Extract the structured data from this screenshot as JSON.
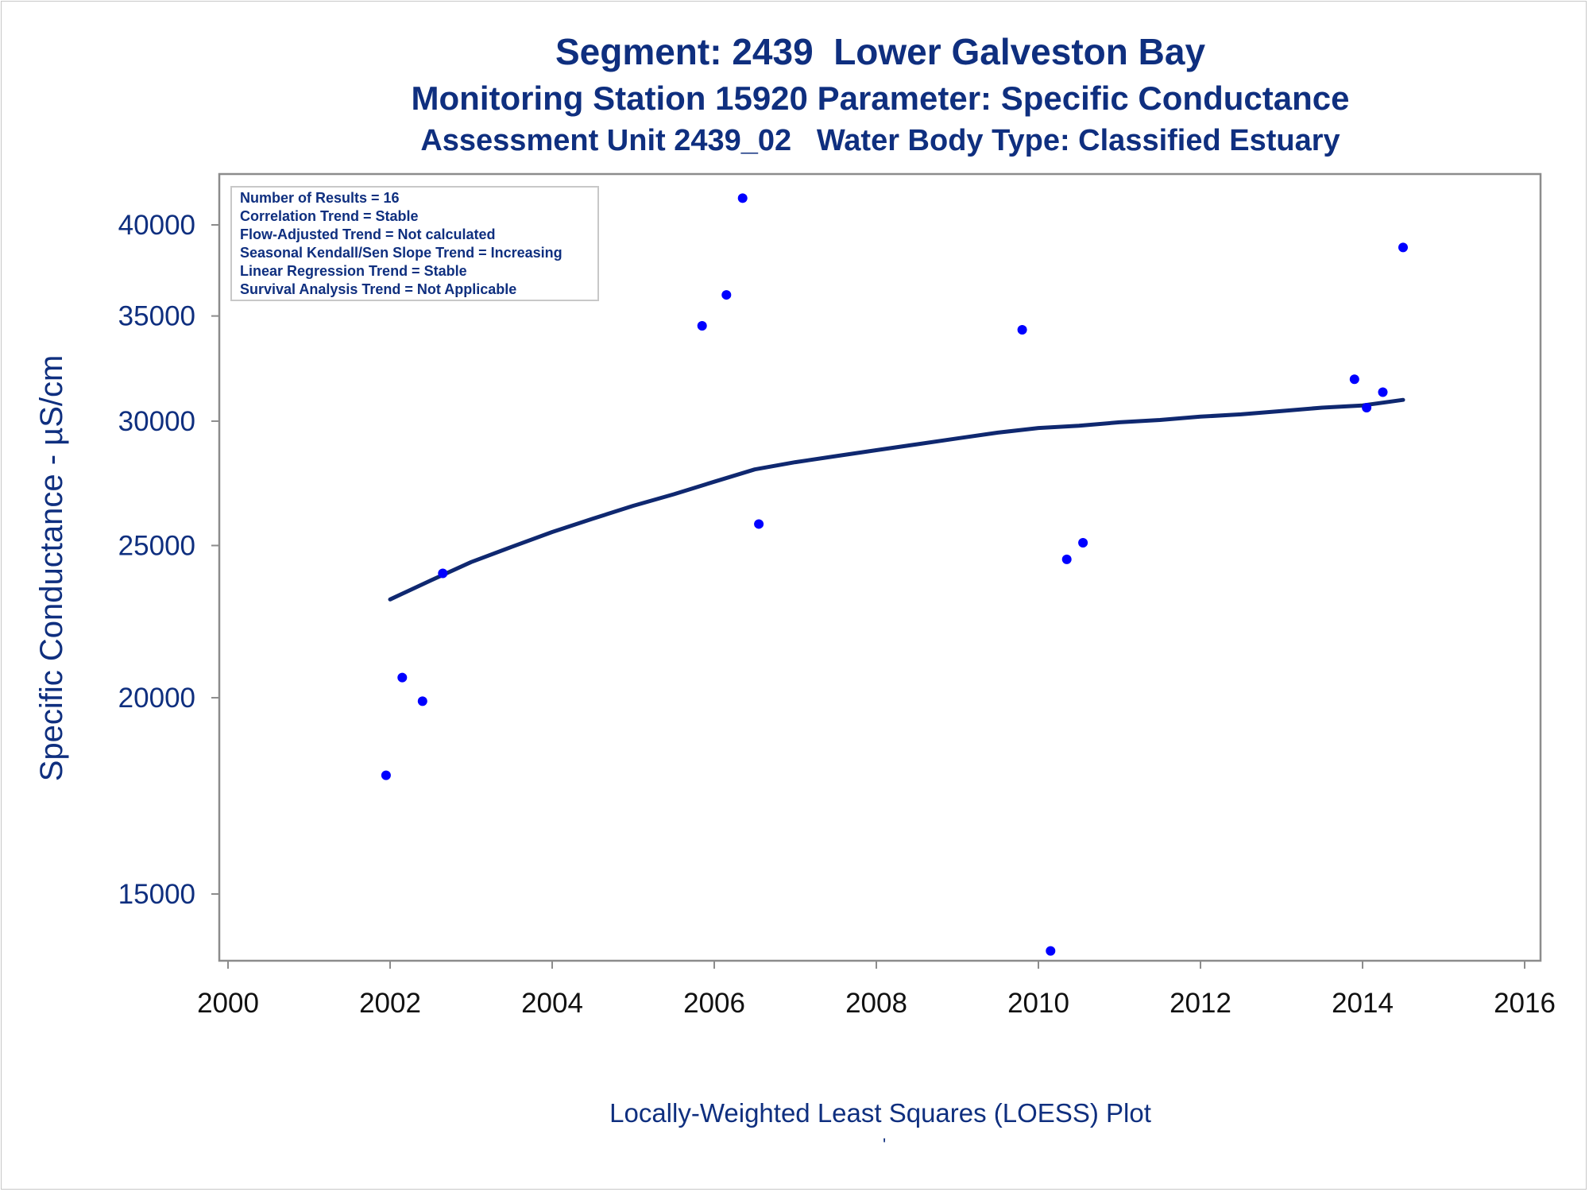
{
  "chart_data": {
    "type": "scatter",
    "title": "Segment: 2439  Lower Galveston Bay",
    "subtitle": "Monitoring Station 15920 Parameter: Specific Conductance",
    "subtitle2": "Assessment Unit 2439_02   Water Body Type: Classified Estuary",
    "ylabel": "Specific Conductance -  µS/cm",
    "xlabel": "",
    "footnote": "Locally-Weighted Least Squares (LOESS) Plot",
    "footnote_mark": "'",
    "y_scale": "log",
    "xlim": [
      2000,
      2016
    ],
    "ylim": [
      13600,
      42000
    ],
    "x_ticks": [
      2000,
      2002,
      2004,
      2006,
      2008,
      2010,
      2012,
      2014,
      2016
    ],
    "x_tick_labels": [
      "2000",
      "2002",
      "2004",
      "2006",
      "2008",
      "2010",
      "2012",
      "2014",
      "2016"
    ],
    "y_ticks": [
      15000,
      20000,
      25000,
      30000,
      35000,
      40000
    ],
    "y_tick_labels": [
      "15000",
      "20000",
      "25000",
      "30000",
      "35000",
      "40000"
    ],
    "grid": false,
    "legend": "none",
    "series": [
      {
        "kind": "points",
        "color": "#0000ff",
        "points": [
          {
            "x": 2001.95,
            "y": 17850
          },
          {
            "x": 2002.15,
            "y": 20600
          },
          {
            "x": 2002.4,
            "y": 19900
          },
          {
            "x": 2002.65,
            "y": 24000
          },
          {
            "x": 2005.85,
            "y": 34500
          },
          {
            "x": 2006.15,
            "y": 36100
          },
          {
            "x": 2006.35,
            "y": 41600
          },
          {
            "x": 2006.55,
            "y": 25800
          },
          {
            "x": 2009.8,
            "y": 34300
          },
          {
            "x": 2010.15,
            "y": 13800
          },
          {
            "x": 2010.35,
            "y": 24500
          },
          {
            "x": 2010.55,
            "y": 25100
          },
          {
            "x": 2013.9,
            "y": 31900
          },
          {
            "x": 2014.05,
            "y": 30600
          },
          {
            "x": 2014.25,
            "y": 31300
          },
          {
            "x": 2014.5,
            "y": 38700
          }
        ]
      },
      {
        "kind": "loess",
        "color": "#0f2870",
        "points": [
          {
            "x": 2002.0,
            "y": 23100
          },
          {
            "x": 2002.5,
            "y": 23750
          },
          {
            "x": 2003.0,
            "y": 24400
          },
          {
            "x": 2003.5,
            "y": 24950
          },
          {
            "x": 2004.0,
            "y": 25500
          },
          {
            "x": 2004.5,
            "y": 26000
          },
          {
            "x": 2005.0,
            "y": 26500
          },
          {
            "x": 2005.5,
            "y": 26950
          },
          {
            "x": 2006.0,
            "y": 27450
          },
          {
            "x": 2006.5,
            "y": 27950
          },
          {
            "x": 2007.0,
            "y": 28250
          },
          {
            "x": 2007.5,
            "y": 28500
          },
          {
            "x": 2008.0,
            "y": 28750
          },
          {
            "x": 2008.5,
            "y": 29000
          },
          {
            "x": 2009.0,
            "y": 29250
          },
          {
            "x": 2009.5,
            "y": 29500
          },
          {
            "x": 2010.0,
            "y": 29700
          },
          {
            "x": 2010.5,
            "y": 29800
          },
          {
            "x": 2011.0,
            "y": 29950
          },
          {
            "x": 2011.5,
            "y": 30050
          },
          {
            "x": 2012.0,
            "y": 30200
          },
          {
            "x": 2012.5,
            "y": 30300
          },
          {
            "x": 2013.0,
            "y": 30450
          },
          {
            "x": 2013.5,
            "y": 30600
          },
          {
            "x": 2014.0,
            "y": 30700
          },
          {
            "x": 2014.5,
            "y": 30950
          }
        ]
      }
    ],
    "annotation_box": [
      "Number of Results = 16",
      "Correlation Trend = Stable",
      "Flow-Adjusted Trend = Not calculated",
      "Seasonal Kendall/Sen Slope Trend = Increasing",
      "Linear Regression Trend = Stable",
      "Survival Analysis Trend = Not Applicable"
    ]
  }
}
